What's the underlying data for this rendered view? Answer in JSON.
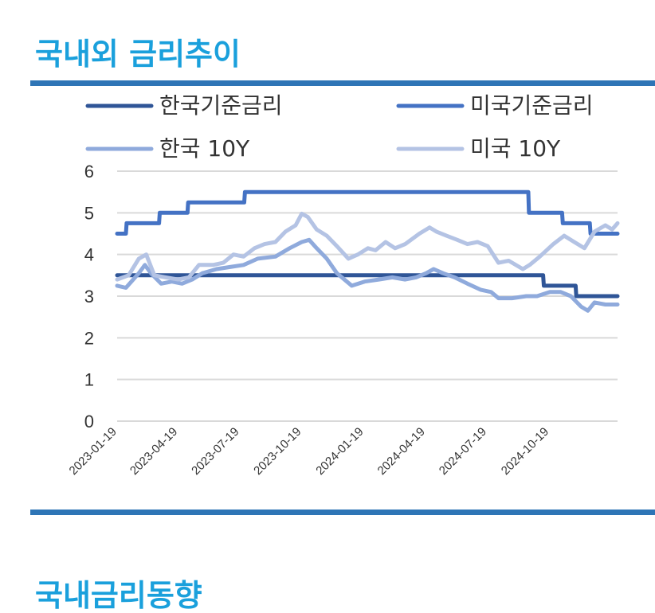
{
  "sections": {
    "title_main": "국내외 금리추이",
    "title_next": "국내금리동향"
  },
  "colors": {
    "title": "#1aa0dc",
    "rule": "#2e75b6",
    "grid": "#d9d9d9"
  },
  "chart_data": {
    "type": "line",
    "title": "",
    "xlabel": "",
    "ylabel": "",
    "ylim": [
      0,
      6
    ],
    "yticks": [
      0,
      1,
      2,
      3,
      4,
      5,
      6
    ],
    "xlim": [
      "2023-01-19",
      "2025-01-28"
    ],
    "xticks": [
      "2023-01-19",
      "2023-04-19",
      "2023-07-19",
      "2023-10-19",
      "2024-01-19",
      "2024-04-19",
      "2024-07-19",
      "2024-10-19"
    ],
    "grid": "horizontal",
    "legend_position": "top",
    "series": [
      {
        "name": "한국기준금리",
        "color": "#2f5597",
        "points": [
          [
            "2023-01-19",
            3.5
          ],
          [
            "2024-10-10",
            3.5
          ],
          [
            "2024-10-11",
            3.25
          ],
          [
            "2024-11-27",
            3.25
          ],
          [
            "2024-11-28",
            3.0
          ],
          [
            "2025-01-28",
            3.0
          ]
        ]
      },
      {
        "name": "미국기준금리",
        "color": "#4472c4",
        "points": [
          [
            "2023-01-19",
            4.5
          ],
          [
            "2023-02-01",
            4.5
          ],
          [
            "2023-02-02",
            4.75
          ],
          [
            "2023-03-22",
            4.75
          ],
          [
            "2023-03-23",
            5.0
          ],
          [
            "2023-05-03",
            5.0
          ],
          [
            "2023-05-04",
            5.25
          ],
          [
            "2023-07-26",
            5.25
          ],
          [
            "2023-07-27",
            5.5
          ],
          [
            "2024-09-18",
            5.5
          ],
          [
            "2024-09-19",
            5.0
          ],
          [
            "2024-11-07",
            5.0
          ],
          [
            "2024-11-08",
            4.75
          ],
          [
            "2024-12-18",
            4.75
          ],
          [
            "2024-12-19",
            4.5
          ],
          [
            "2025-01-28",
            4.5
          ]
        ]
      },
      {
        "name": "한국 10Y",
        "color": "#8faadc",
        "points": [
          [
            "2023-01-19",
            3.25
          ],
          [
            "2023-02-01",
            3.2
          ],
          [
            "2023-02-20",
            3.55
          ],
          [
            "2023-03-01",
            3.75
          ],
          [
            "2023-03-10",
            3.55
          ],
          [
            "2023-03-25",
            3.3
          ],
          [
            "2023-04-10",
            3.35
          ],
          [
            "2023-04-25",
            3.3
          ],
          [
            "2023-05-10",
            3.4
          ],
          [
            "2023-05-25",
            3.55
          ],
          [
            "2023-06-15",
            3.65
          ],
          [
            "2023-07-05",
            3.7
          ],
          [
            "2023-07-25",
            3.75
          ],
          [
            "2023-08-15",
            3.9
          ],
          [
            "2023-09-10",
            3.95
          ],
          [
            "2023-10-01",
            4.15
          ],
          [
            "2023-10-19",
            4.3
          ],
          [
            "2023-10-30",
            4.35
          ],
          [
            "2023-11-10",
            4.15
          ],
          [
            "2023-11-25",
            3.9
          ],
          [
            "2023-12-10",
            3.55
          ],
          [
            "2024-01-01",
            3.25
          ],
          [
            "2024-01-20",
            3.35
          ],
          [
            "2024-02-10",
            3.4
          ],
          [
            "2024-03-01",
            3.45
          ],
          [
            "2024-03-20",
            3.4
          ],
          [
            "2024-04-05",
            3.45
          ],
          [
            "2024-04-20",
            3.55
          ],
          [
            "2024-05-01",
            3.65
          ],
          [
            "2024-05-15",
            3.55
          ],
          [
            "2024-06-01",
            3.45
          ],
          [
            "2024-06-20",
            3.3
          ],
          [
            "2024-07-10",
            3.15
          ],
          [
            "2024-07-25",
            3.1
          ],
          [
            "2024-08-05",
            2.95
          ],
          [
            "2024-08-25",
            2.95
          ],
          [
            "2024-09-15",
            3.0
          ],
          [
            "2024-10-01",
            3.0
          ],
          [
            "2024-10-20",
            3.1
          ],
          [
            "2024-11-05",
            3.1
          ],
          [
            "2024-11-20",
            3.0
          ],
          [
            "2024-12-05",
            2.75
          ],
          [
            "2024-12-15",
            2.65
          ],
          [
            "2024-12-25",
            2.85
          ],
          [
            "2025-01-10",
            2.8
          ],
          [
            "2025-01-28",
            2.8
          ]
        ]
      },
      {
        "name": "미국 10Y",
        "color": "#b4c3e4",
        "points": [
          [
            "2023-01-19",
            3.4
          ],
          [
            "2023-02-05",
            3.5
          ],
          [
            "2023-02-20",
            3.9
          ],
          [
            "2023-03-03",
            4.0
          ],
          [
            "2023-03-15",
            3.5
          ],
          [
            "2023-04-01",
            3.45
          ],
          [
            "2023-04-19",
            3.4
          ],
          [
            "2023-05-05",
            3.45
          ],
          [
            "2023-05-20",
            3.75
          ],
          [
            "2023-06-10",
            3.75
          ],
          [
            "2023-06-25",
            3.8
          ],
          [
            "2023-07-10",
            4.0
          ],
          [
            "2023-07-25",
            3.95
          ],
          [
            "2023-08-10",
            4.15
          ],
          [
            "2023-08-25",
            4.25
          ],
          [
            "2023-09-10",
            4.3
          ],
          [
            "2023-09-25",
            4.55
          ],
          [
            "2023-10-10",
            4.7
          ],
          [
            "2023-10-19",
            4.98
          ],
          [
            "2023-10-28",
            4.9
          ],
          [
            "2023-11-10",
            4.6
          ],
          [
            "2023-11-25",
            4.45
          ],
          [
            "2023-12-10",
            4.2
          ],
          [
            "2023-12-27",
            3.9
          ],
          [
            "2024-01-10",
            4.0
          ],
          [
            "2024-01-25",
            4.15
          ],
          [
            "2024-02-05",
            4.1
          ],
          [
            "2024-02-20",
            4.3
          ],
          [
            "2024-03-05",
            4.15
          ],
          [
            "2024-03-20",
            4.25
          ],
          [
            "2024-04-10",
            4.5
          ],
          [
            "2024-04-25",
            4.65
          ],
          [
            "2024-05-05",
            4.55
          ],
          [
            "2024-05-20",
            4.45
          ],
          [
            "2024-06-05",
            4.35
          ],
          [
            "2024-06-20",
            4.25
          ],
          [
            "2024-07-05",
            4.3
          ],
          [
            "2024-07-20",
            4.2
          ],
          [
            "2024-08-05",
            3.8
          ],
          [
            "2024-08-20",
            3.85
          ],
          [
            "2024-09-10",
            3.65
          ],
          [
            "2024-09-20",
            3.75
          ],
          [
            "2024-10-05",
            3.95
          ],
          [
            "2024-10-25",
            4.25
          ],
          [
            "2024-11-10",
            4.45
          ],
          [
            "2024-11-25",
            4.3
          ],
          [
            "2024-12-10",
            4.15
          ],
          [
            "2024-12-25",
            4.55
          ],
          [
            "2025-01-10",
            4.7
          ],
          [
            "2025-01-20",
            4.6
          ],
          [
            "2025-01-28",
            4.75
          ]
        ]
      }
    ]
  }
}
